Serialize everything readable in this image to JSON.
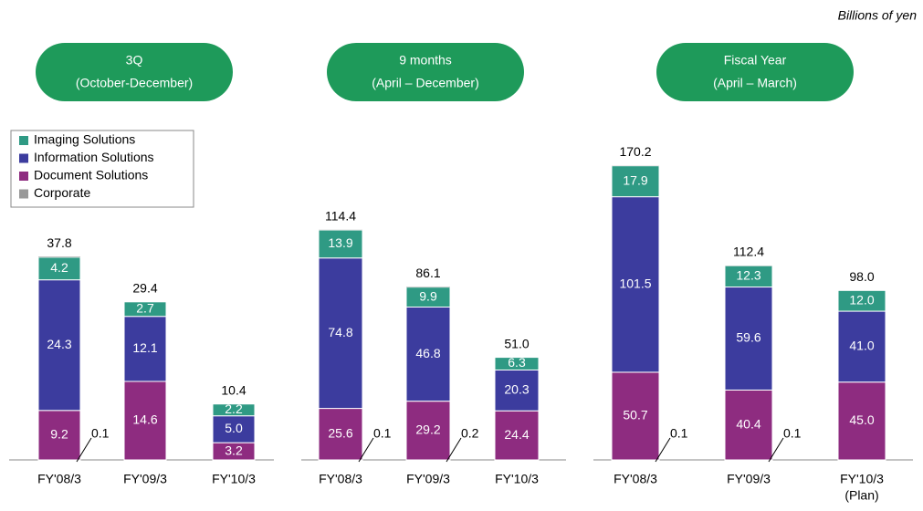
{
  "unit_note": "Billions of yen",
  "chart_data": [
    {
      "type": "stacked-bar",
      "title": "3Q",
      "subtitle": "(October-December)",
      "legend": "upper-left",
      "categories": [
        "FY'08/3",
        "FY'09/3",
        "FY'10/3"
      ],
      "category_notes": [
        null,
        null,
        null
      ],
      "ylim": [
        0,
        55
      ],
      "series": [
        {
          "name": "Document Solutions",
          "color": "#8e2c80",
          "values": [
            9.2,
            14.6,
            3.2
          ]
        },
        {
          "name": "Information Solutions",
          "color": "#3c3c9e",
          "values": [
            24.3,
            12.1,
            5.0
          ],
          "value_labels": [
            "24.3",
            "12.1",
            "5.0"
          ]
        },
        {
          "name": "Imaging Solutions",
          "color": "#2f9a84",
          "values": [
            4.2,
            2.7,
            2.2
          ]
        },
        {
          "name": "Corporate",
          "color": "#999999",
          "values": [
            0.1,
            null,
            null
          ]
        }
      ],
      "totals": [
        37.8,
        29.4,
        10.4
      ]
    },
    {
      "type": "stacked-bar",
      "title": "9 months",
      "subtitle": "(April – December)",
      "categories": [
        "FY'08/3",
        "FY'09/3",
        "FY'10/3"
      ],
      "category_notes": [
        null,
        null,
        null
      ],
      "ylim": [
        0,
        147
      ],
      "series": [
        {
          "name": "Document Solutions",
          "color": "#8e2c80",
          "values": [
            25.6,
            29.2,
            24.4
          ]
        },
        {
          "name": "Information Solutions",
          "color": "#3c3c9e",
          "values": [
            74.8,
            46.8,
            20.3
          ]
        },
        {
          "name": "Imaging Solutions",
          "color": "#2f9a84",
          "values": [
            13.9,
            9.9,
            6.3
          ]
        },
        {
          "name": "Corporate",
          "color": "#999999",
          "values": [
            0.1,
            0.2,
            null
          ]
        }
      ],
      "totals": [
        114.4,
        86.1,
        51.0
      ],
      "total_labels": [
        "114.4",
        "86.1",
        "51.0"
      ]
    },
    {
      "type": "stacked-bar",
      "title": "Fiscal Year",
      "subtitle": "(April – March)",
      "categories": [
        "FY'08/3",
        "FY'09/3",
        "FY'10/3"
      ],
      "category_notes": [
        null,
        null,
        "(Plan)"
      ],
      "ylim": [
        0,
        171
      ],
      "series": [
        {
          "name": "Document Solutions",
          "color": "#8e2c80",
          "values": [
            50.7,
            40.4,
            45.0
          ],
          "value_labels": [
            "50.7",
            "40.4",
            "45.0"
          ]
        },
        {
          "name": "Information Solutions",
          "color": "#3c3c9e",
          "values": [
            101.5,
            59.6,
            41.0
          ],
          "value_labels": [
            "101.5",
            "59.6",
            "41.0"
          ]
        },
        {
          "name": "Imaging Solutions",
          "color": "#2f9a84",
          "values": [
            17.9,
            12.3,
            12.0
          ],
          "value_labels": [
            "17.9",
            "12.3",
            "12.0"
          ]
        },
        {
          "name": "Corporate",
          "color": "#999999",
          "values": [
            0.1,
            0.1,
            null
          ]
        }
      ],
      "totals": [
        170.2,
        112.4,
        98.0
      ],
      "total_labels": [
        "170.2",
        "112.4",
        "98.0"
      ]
    }
  ]
}
